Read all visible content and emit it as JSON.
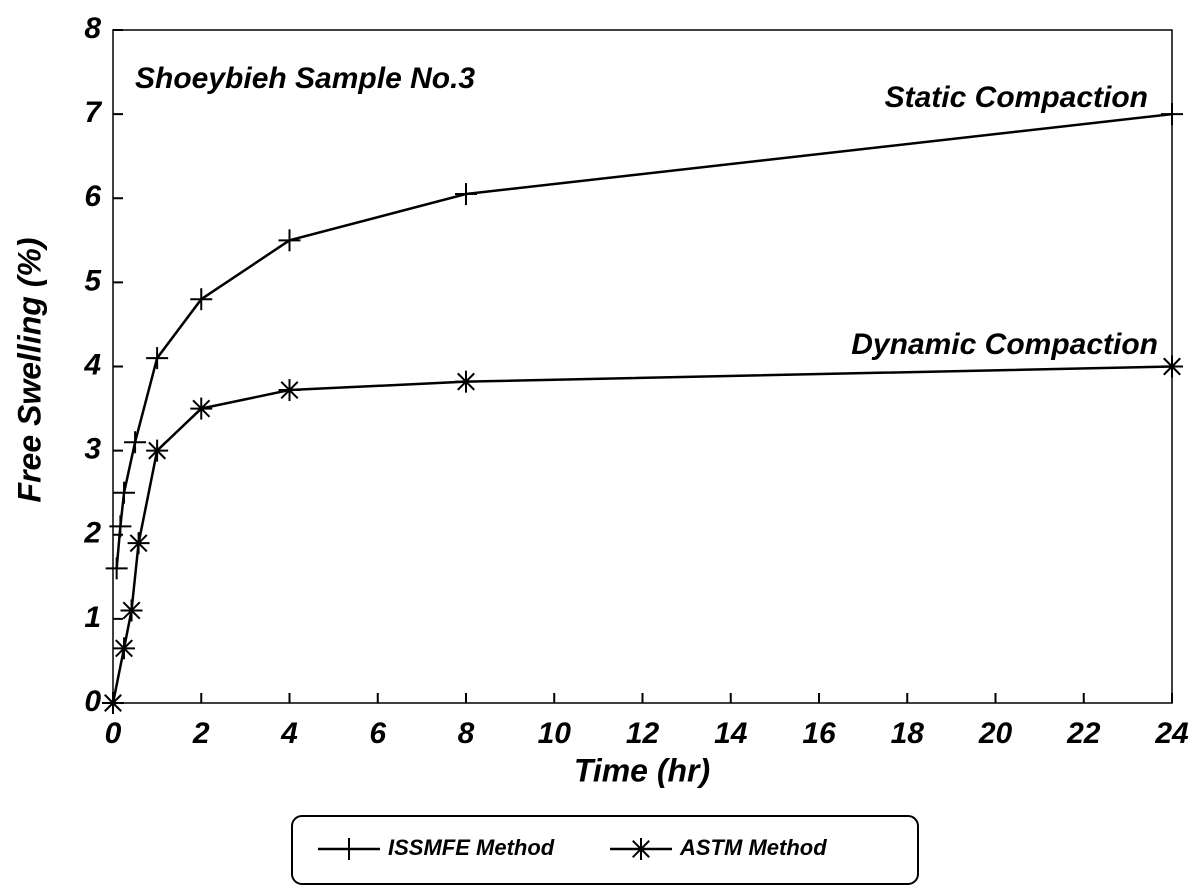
{
  "chart_data": {
    "type": "line",
    "title": "Shoeybieh Sample No.3",
    "xlabel": "Time (hr)",
    "ylabel": "Free Swelling (%)",
    "annotations": [
      "Static Compaction",
      "Dynamic Compaction"
    ],
    "series": [
      {
        "name": "ISSMFE Method",
        "color": "#000000",
        "marker": "plus",
        "x": [
          0.083,
          0.167,
          0.25,
          0.5,
          1,
          2,
          4,
          8,
          24
        ],
        "values": [
          1.6,
          2.1,
          2.5,
          3.1,
          4.1,
          4.8,
          5.5,
          6.05,
          7.0
        ]
      },
      {
        "name": "ASTM Method",
        "color": "#000000",
        "marker": "asterisk",
        "x": [
          0,
          0.25,
          0.42,
          0.58,
          1,
          2,
          4,
          8,
          24
        ],
        "values": [
          0,
          0.65,
          1.1,
          1.9,
          3.0,
          3.5,
          3.72,
          3.82,
          4.0
        ]
      }
    ],
    "xlim": [
      0,
      24
    ],
    "xticks": [
      0,
      2,
      4,
      6,
      8,
      10,
      12,
      14,
      16,
      18,
      20,
      22,
      24
    ],
    "ylim": [
      0,
      8
    ],
    "yticks": [
      0,
      1,
      2,
      3,
      4,
      5,
      6,
      7,
      8
    ],
    "grid": false
  }
}
